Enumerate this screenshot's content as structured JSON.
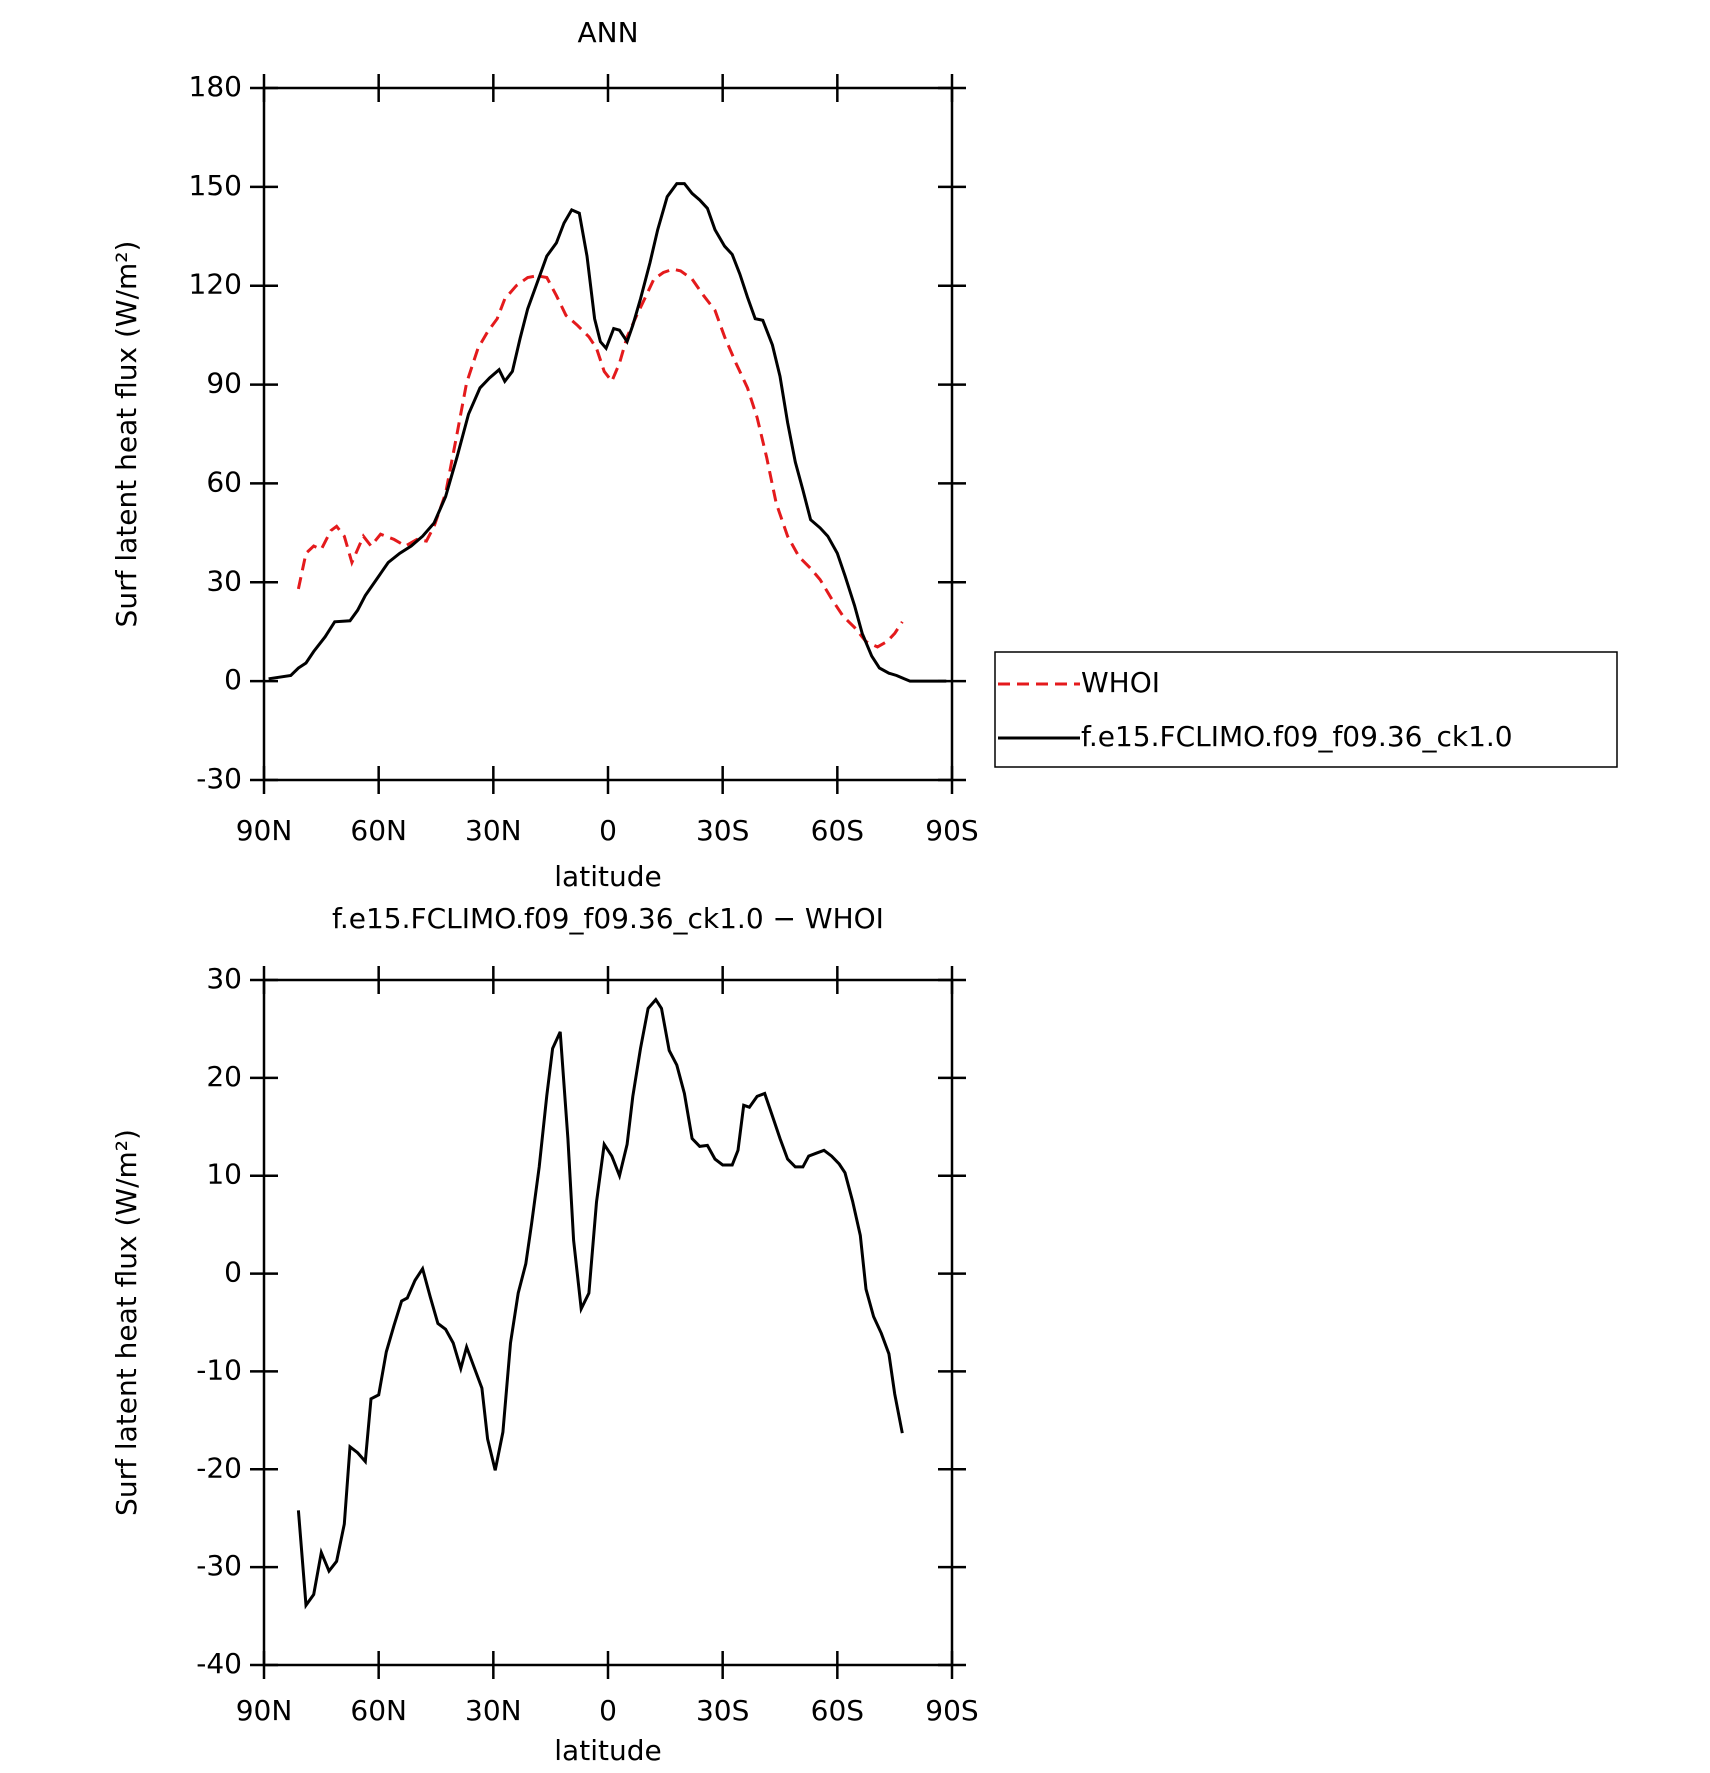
{
  "chart_data": [
    {
      "type": "line",
      "title": "ANN",
      "x_label": "latitude",
      "y_label": "Surf latent heat flux (W/m²)",
      "xlim": [
        90,
        -90
      ],
      "xticks": [
        {
          "value": 90,
          "label": "90N"
        },
        {
          "value": 60,
          "label": "60N"
        },
        {
          "value": 30,
          "label": "30N"
        },
        0,
        {
          "value": -30,
          "label": "30S"
        },
        {
          "value": -60,
          "label": "60S"
        },
        {
          "value": -90,
          "label": "90S"
        }
      ],
      "ylim": [
        -30,
        180
      ],
      "yticks": [
        -30,
        0,
        30,
        60,
        90,
        120,
        150,
        180
      ],
      "legend": "right",
      "series": [
        {
          "name": "WHOI",
          "color": "#e41a1c",
          "line_style": "dashed",
          "x": [
            81,
            79,
            77,
            75,
            72.5,
            71,
            69,
            67,
            64,
            62,
            59.5,
            56,
            53,
            50,
            47.5,
            45.5,
            42.5,
            39.5,
            37,
            34,
            31.5,
            29,
            27,
            24,
            21,
            18.5,
            16,
            13.5,
            11,
            8,
            5,
            3,
            1,
            -1,
            -3,
            -5,
            -7.5,
            -10,
            -12,
            -14.5,
            -17,
            -19,
            -22,
            -25,
            -28,
            -30.5,
            -33.5,
            -36.5,
            -39,
            -41.5,
            -44,
            -47,
            -50,
            -53,
            -55.5,
            -58.5,
            -61.5,
            -64.5,
            -67.5,
            -70.5,
            -73,
            -75,
            -77
          ],
          "values": [
            28,
            38.8,
            41,
            40,
            45.7,
            47,
            44,
            36,
            44,
            41,
            44.6,
            43,
            41,
            43,
            42.5,
            47,
            57,
            75,
            90.5,
            101,
            106,
            110,
            116,
            120,
            122.5,
            123,
            122.5,
            117,
            111,
            108,
            104.5,
            101,
            94,
            91,
            96.5,
            104.5,
            111,
            117,
            122,
            124,
            125,
            124.5,
            122,
            117,
            112.5,
            104.5,
            96.5,
            89,
            80,
            68,
            54,
            44,
            37.7,
            34.2,
            30.8,
            25,
            19.7,
            16.3,
            12,
            10.4,
            12,
            14.5,
            18
          ]
        },
        {
          "name": "f.e15.FCLIMO.f09_f09.36_ck1.0",
          "color": "#000000",
          "line_style": "solid",
          "x": [
            88.8,
            83,
            81,
            79,
            77,
            74,
            71.5,
            67.5,
            65.5,
            63.5,
            60.5,
            57.5,
            54.5,
            51.5,
            48.5,
            45.5,
            42.5,
            39.5,
            36.5,
            33.5,
            31,
            28.5,
            27,
            25,
            23,
            21,
            18.5,
            16,
            13.5,
            11.5,
            9.5,
            7.5,
            5.5,
            3.5,
            2,
            0.5,
            -1.5,
            -3,
            -5,
            -6.5,
            -8.5,
            -11,
            -13,
            -15.5,
            -18,
            -20,
            -22,
            -24,
            -26,
            -28,
            -30.5,
            -32.5,
            -34.5,
            -36.5,
            -38.5,
            -40.5,
            -43,
            -45,
            -47,
            -49,
            -51,
            -53,
            -55.5,
            -57.5,
            -60,
            -62,
            -64.5,
            -66.5,
            -69,
            -71,
            -73.5,
            -75.5,
            -77.5,
            -79,
            -82.5,
            -85.5,
            -88.5
          ],
          "values": [
            0.7,
            1.7,
            4,
            5.5,
            9,
            13.5,
            18,
            18.3,
            21.5,
            26,
            31,
            36,
            38.8,
            41,
            44,
            48,
            56,
            68,
            81,
            89,
            92,
            94.5,
            91,
            94,
            104,
            113,
            121,
            129,
            133,
            139,
            143,
            142,
            129,
            110,
            103,
            101,
            107,
            106.5,
            103,
            108,
            116,
            127,
            137,
            147,
            151,
            151,
            148,
            146,
            143.5,
            137,
            132,
            129.5,
            123.5,
            116.5,
            110,
            109.5,
            102,
            92.5,
            78.5,
            66.5,
            58,
            49,
            46.5,
            44,
            38.8,
            32,
            23,
            14.5,
            7.6,
            4,
            2.4,
            1.7,
            0.7,
            0,
            0,
            0,
            0
          ]
        }
      ]
    },
    {
      "type": "line",
      "title": "f.e15.FCLIMO.f09_f09.36_ck1.0 − WHOI",
      "x_label": "latitude",
      "y_label": "Surf latent heat flux (W/m²)",
      "xlim": [
        90,
        -90
      ],
      "xticks": [
        {
          "value": 90,
          "label": "90N"
        },
        {
          "value": 60,
          "label": "60N"
        },
        {
          "value": 30,
          "label": "30N"
        },
        0,
        {
          "value": -30,
          "label": "30S"
        },
        {
          "value": -60,
          "label": "60S"
        },
        {
          "value": -90,
          "label": "90S"
        }
      ],
      "ylim": [
        -40,
        30
      ],
      "yticks": [
        -40,
        -30,
        -20,
        -10,
        0,
        10,
        20,
        30
      ],
      "series": [
        {
          "color": "#000000",
          "line_style": "solid",
          "x": [
            81,
            79,
            77,
            75,
            73,
            71,
            69,
            67.5,
            65.5,
            63.5,
            62,
            60,
            58,
            56,
            54,
            52.5,
            50.5,
            48.5,
            46.5,
            44.5,
            42.5,
            40.5,
            38.5,
            37,
            35,
            33,
            31.5,
            29.5,
            27.5,
            25.5,
            23.5,
            21.5,
            20,
            18,
            16,
            14.5,
            12.5,
            10.5,
            9,
            7,
            5,
            3,
            1,
            -1,
            -3,
            -5,
            -6.5,
            -8.5,
            -10.5,
            -12.5,
            -14,
            -16,
            -18,
            -20,
            -22,
            -24,
            -26,
            -28,
            -30,
            -32.5,
            -34,
            -35.5,
            -37,
            -39,
            -41,
            -43,
            -45,
            -47,
            -49,
            -51,
            -52.5,
            -54.5,
            -56.5,
            -58.5,
            -60.5,
            -62,
            -64,
            -66,
            -67.5,
            -69.5,
            -71.5,
            -73.5,
            -75,
            -77
          ],
          "values": [
            -24.2,
            -33.9,
            -32.8,
            -28.5,
            -30.4,
            -29.4,
            -25.6,
            -17.7,
            -18.3,
            -19.2,
            -12.8,
            -12.4,
            -8,
            -5.3,
            -2.8,
            -2.5,
            -0.7,
            0.5,
            -2.4,
            -5.1,
            -5.7,
            -7.1,
            -9.7,
            -7.5,
            -9.6,
            -11.7,
            -16.9,
            -20.1,
            -16.2,
            -7.1,
            -2,
            1,
            5.1,
            10.9,
            18.2,
            23,
            24.7,
            13.8,
            3.4,
            -3.6,
            -2,
            7.3,
            13.2,
            12,
            10,
            13.2,
            18.1,
            23,
            27.1,
            28,
            27.1,
            22.8,
            21.3,
            18.4,
            13.8,
            13,
            13.1,
            11.7,
            11.1,
            11.1,
            12.6,
            17.2,
            17,
            18.1,
            18.4,
            16.1,
            13.8,
            11.7,
            10.9,
            10.9,
            12,
            12.3,
            12.6,
            12,
            11.2,
            10.3,
            7.4,
            3.9,
            -1.6,
            -4.4,
            -6.1,
            -8.2,
            -12.3,
            -16.3
          ]
        }
      ]
    }
  ]
}
